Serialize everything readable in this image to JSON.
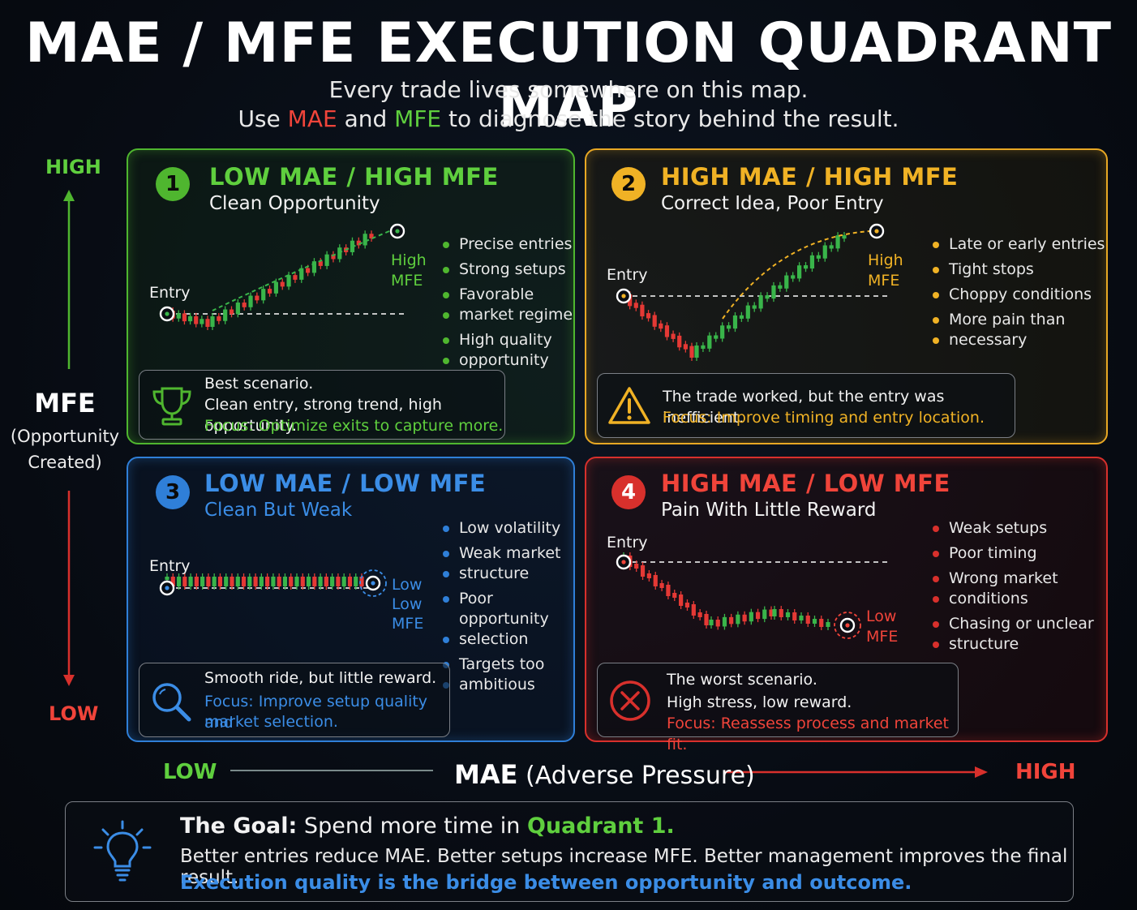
{
  "header": {
    "title": "MAE / MFE EXECUTION QUADRANT MAP",
    "line1": "Every trade lives somewhere on this map.",
    "line2_use": "Use ",
    "line2_mae": "MAE",
    "line2_and": " and ",
    "line2_mfe": "MFE",
    "line2_rest": " to diagnose the story behind the result."
  },
  "y_axis": {
    "high": "HIGH",
    "low": "LOW",
    "label": "MFE",
    "sub1": "(Opportunity",
    "sub2": "Created)"
  },
  "x_axis": {
    "low": "LOW",
    "label_bold": "MAE",
    "label_rest": "(Adverse Pressure)",
    "high": "HIGH"
  },
  "colors": {
    "green": "#5fcf3e",
    "yellow": "#f0b225",
    "blue": "#3b8de6",
    "red": "#f0443a"
  },
  "quadrants": [
    {
      "number": "1",
      "title": "LOW MAE / HIGH MFE",
      "subtitle": "Clean Opportunity",
      "entry_label": "Entry",
      "end_label1": "High",
      "end_label2": "MFE",
      "bullets": [
        "Precise entries",
        "Strong setups",
        "Favorable",
        "market regime",
        "High quality",
        "opportunity"
      ],
      "callout": {
        "icon": "trophy-icon",
        "line1": "Best scenario.",
        "line2": "Clean entry, strong trend, high opportunity.",
        "focus": "Focus: Optimize exits to capture more."
      }
    },
    {
      "number": "2",
      "title": "HIGH MAE / HIGH MFE",
      "subtitle": "Correct Idea, Poor Entry",
      "entry_label": "Entry",
      "end_label1": "High",
      "end_label2": "MFE",
      "bullets": [
        "Late or early entries",
        "Tight stops",
        "Choppy conditions",
        "More pain than",
        "necessary"
      ],
      "callout": {
        "icon": "warning-icon",
        "line1": "The trade worked, but the entry was inefficient.",
        "focus": "Focus: Improve timing and entry location."
      }
    },
    {
      "number": "3",
      "title": "LOW MAE / LOW MFE",
      "subtitle": "Clean But Weak",
      "entry_label": "Entry",
      "end_label1": "Low",
      "end_label2": "Low",
      "end_label3": "MFE",
      "bullets": [
        "Low volatility",
        "Weak market",
        "structure",
        "Poor opportunity",
        "selection",
        "Targets too",
        "ambitious"
      ],
      "callout": {
        "icon": "magnifier-icon",
        "line1": "Smooth ride, but little reward.",
        "focus1": "Focus: Improve setup quality and",
        "focus2": "market selection."
      }
    },
    {
      "number": "4",
      "title": "HIGH MAE / LOW MFE",
      "subtitle": "Pain With Little Reward",
      "entry_label": "Entry",
      "end_label1": "Low",
      "end_label2": "MFE",
      "bullets": [
        "Weak setups",
        "Poor timing",
        "Wrong market",
        "conditions",
        "Chasing or unclear",
        "structure"
      ],
      "callout": {
        "icon": "x-circle-icon",
        "line1": "The worst scenario.",
        "line2": "High stress, low reward.",
        "focus": "Focus: Reassess process and market fit."
      }
    }
  ],
  "goal": {
    "icon": "lightbulb-icon",
    "lead": "The Goal:",
    "text": " Spend more time in ",
    "highlight": "Quadrant 1.",
    "line2": "Better entries reduce MAE. Better setups increase MFE. Better management improves the final result.",
    "line3": "Execution quality is the bridge between opportunity and outcome."
  }
}
